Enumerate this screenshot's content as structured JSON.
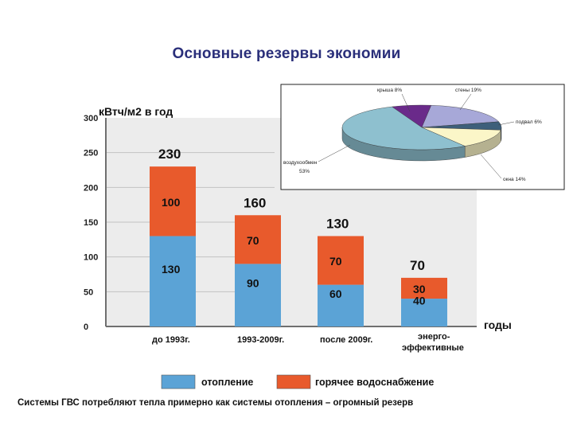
{
  "slide": {
    "title": "Основные резервы экономии",
    "caption": "Системы ГВС потребляют тепла примерно как системы отопления – огромный резерв"
  },
  "colors": {
    "heating": "#5ba3d6",
    "hot_water": "#e85a2c",
    "plot_bg": "#ececec",
    "axis": "#6f6f6f"
  },
  "chart_data": [
    {
      "type": "bar",
      "stacked": true,
      "ylabel": "кВтч/м2 в год",
      "xlabel": "годы",
      "ylim": [
        0,
        300
      ],
      "yticks": [
        0,
        50,
        100,
        150,
        200,
        250,
        300
      ],
      "grid": false,
      "categories": [
        "до 1993г.",
        "1993-2009г.",
        "после 2009г.",
        "энерго-эффективные"
      ],
      "series": [
        {
          "name": "отопление",
          "color": "#5ba3d6",
          "values": [
            130,
            90,
            60,
            40
          ]
        },
        {
          "name": "горячее водоснабжение",
          "color": "#e85a2c",
          "values": [
            100,
            70,
            70,
            30
          ]
        }
      ],
      "totals": [
        230,
        160,
        130,
        70
      ],
      "legend_position": "bottom"
    },
    {
      "type": "pie",
      "three_d": true,
      "labels": [
        "крыша 8%",
        "стены 19%",
        "подвал 6%",
        "окна 14%",
        "воздухообмен 53%"
      ],
      "values": [
        8,
        19,
        6,
        14,
        53
      ],
      "colors": [
        "#6a2a8a",
        "#a7a8d8",
        "#3d5f7a",
        "#fbf6c8",
        "#8ec0cf"
      ],
      "legend_position": "none"
    }
  ]
}
